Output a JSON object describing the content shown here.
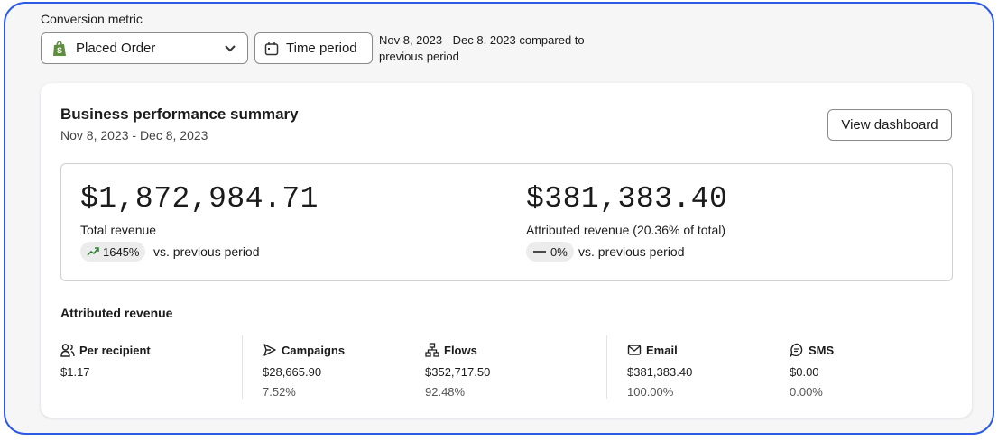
{
  "conversion_metric": {
    "label": "Conversion metric",
    "selected": "Placed Order"
  },
  "time_period": {
    "button": "Time period",
    "range": "Nov 8, 2023 - Dec 8, 2023 compared to previous period"
  },
  "summary": {
    "title": "Business performance summary",
    "date_range": "Nov 8, 2023 - Dec 8, 2023",
    "button": "View dashboard",
    "total": {
      "amount": "$1,872,984.71",
      "label": "Total revenue",
      "change": "1645%",
      "comparison": "vs. previous period"
    },
    "attributed": {
      "amount": "$381,383.40",
      "label": "Attributed revenue (20.36% of total)",
      "change": "0%",
      "comparison": "vs. previous period"
    }
  },
  "attributed_revenue": {
    "title": "Attributed revenue",
    "columns": [
      {
        "label": "Per recipient",
        "value": "$1.17"
      },
      {
        "label": "Campaigns",
        "value": "$28,665.90",
        "share": "7.52%"
      },
      {
        "label": "Flows",
        "value": "$352,717.50",
        "share": "92.48%"
      },
      {
        "label": "Email",
        "value": "$381,383.40",
        "share": "100.00%"
      },
      {
        "label": "SMS",
        "value": "$0.00",
        "share": "0.00%"
      }
    ]
  }
}
